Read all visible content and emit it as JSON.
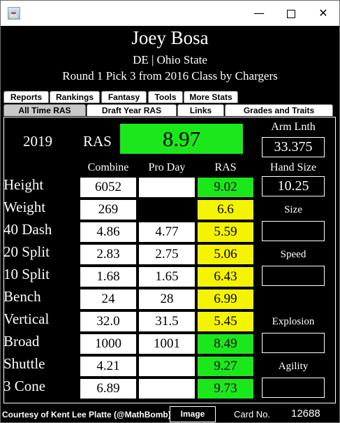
{
  "window": {
    "min_glyph": "—",
    "close_glyph": "✕"
  },
  "player": {
    "name": "Joey Bosa",
    "position_school": "DE | Ohio State",
    "draft": "Round 1 Pick 3 from 2016 Class by Chargers"
  },
  "tabs_row1": [
    "Reports",
    "Rankings",
    "Fantasy",
    "Tools",
    "More Stats"
  ],
  "tabs_row2": [
    "All Time RAS",
    "Draft Year RAS",
    "Links",
    "Grades and Traits"
  ],
  "selected_tab": "All Time RAS",
  "ras": {
    "year": "2019",
    "label": "RAS",
    "score": "8.97"
  },
  "arm_length": {
    "label": "Arm Lnth",
    "value": "33.375"
  },
  "hand_size": {
    "label": "Hand Size",
    "value": "10.25"
  },
  "columns": {
    "combine": "Combine",
    "pro_day": "Pro Day",
    "ras": "RAS"
  },
  "rows": [
    {
      "label": "Height",
      "combine": "6052",
      "pro_day": "",
      "ras": "9.02",
      "ras_color": "green"
    },
    {
      "label": "Weight",
      "combine": "269",
      "pro_day": "",
      "ras": "6.6",
      "ras_color": "yellow"
    },
    {
      "label": "40 Dash",
      "combine": "4.86",
      "pro_day": "4.77",
      "ras": "5.59",
      "ras_color": "yellow"
    },
    {
      "label": "20 Split",
      "combine": "2.83",
      "pro_day": "2.75",
      "ras": "5.06",
      "ras_color": "yellow"
    },
    {
      "label": "10 Split",
      "combine": "1.68",
      "pro_day": "1.65",
      "ras": "6.43",
      "ras_color": "yellow"
    },
    {
      "label": "Bench",
      "combine": "24",
      "pro_day": "28",
      "ras": "6.99",
      "ras_color": "yellow"
    },
    {
      "label": "Vertical",
      "combine": "32.0",
      "pro_day": "31.5",
      "ras": "5.45",
      "ras_color": "yellow"
    },
    {
      "label": "Broad",
      "combine": "1000",
      "pro_day": "1001",
      "ras": "8.49",
      "ras_color": "green"
    },
    {
      "label": "Shuttle",
      "combine": "4.21",
      "pro_day": "",
      "ras": "9.27",
      "ras_color": "green"
    },
    {
      "label": "3 Cone",
      "combine": "6.89",
      "pro_day": "",
      "ras": "9.73",
      "ras_color": "green"
    }
  ],
  "grades": [
    {
      "label": "Size",
      "value": ""
    },
    {
      "label": "Speed",
      "value": ""
    },
    {
      "label": "Explosion",
      "value": ""
    },
    {
      "label": "Agility",
      "value": ""
    }
  ],
  "footer": {
    "credit": "Courtesy of Kent Lee Platte (@MathBomb)",
    "image_button": "Image",
    "card_label": "Card No.",
    "card_number": "12688"
  },
  "colors": {
    "green": "#1be81b",
    "yellow": "#f4f400",
    "white": "#ffffff",
    "background": "#000000"
  }
}
